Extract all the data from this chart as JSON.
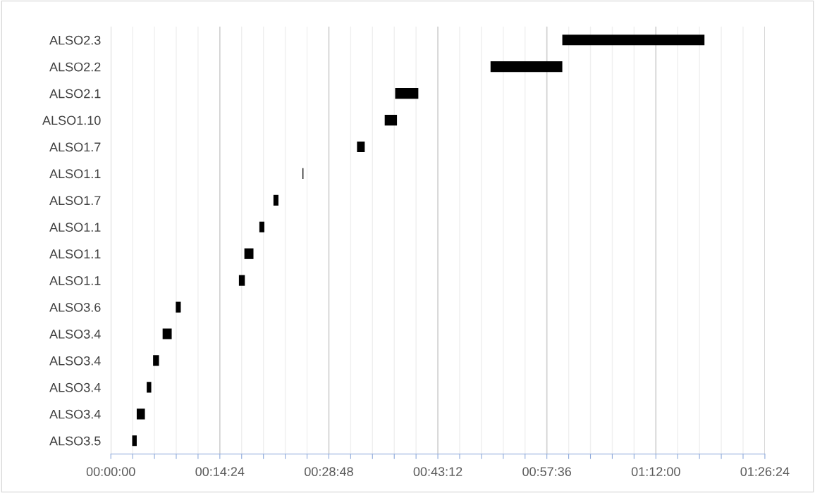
{
  "chart_data": {
    "type": "bar",
    "orientation": "horizontal",
    "categories": [
      "ALSO2.3",
      "ALSO2.2",
      "ALSO2.1",
      "ALSO1.10",
      "ALSO1.7",
      "ALSO1.1",
      "ALSO1.7",
      "ALSO1.1",
      "ALSO1.1",
      "ALSO1.1",
      "ALSO3.6",
      "ALSO3.4",
      "ALSO3.4",
      "ALSO3.4",
      "ALSO3.4",
      "ALSO3.5"
    ],
    "base": [
      0.994,
      0.836,
      0.626,
      0.603,
      0.542,
      0.422,
      0.358,
      0.327,
      0.294,
      0.282,
      0.143,
      0.114,
      0.093,
      0.079,
      0.057,
      0.047
    ],
    "values": [
      0.313,
      0.158,
      0.051,
      0.027,
      0.017,
      0.002,
      0.011,
      0.011,
      0.02,
      0.013,
      0.011,
      0.02,
      0.013,
      0.01,
      0.018,
      0.01
    ],
    "color": "#000000",
    "xlim": [
      0,
      1.44
    ],
    "xticks": [
      {
        "value": 0,
        "label": "00:00:00"
      },
      {
        "value": 0.048,
        "label": null
      },
      {
        "value": 0.096,
        "label": null
      },
      {
        "value": 0.144,
        "label": null
      },
      {
        "value": 0.192,
        "label": null
      },
      {
        "value": 0.24,
        "label": "00:14:24"
      },
      {
        "value": 0.288,
        "label": null
      },
      {
        "value": 0.336,
        "label": null
      },
      {
        "value": 0.384,
        "label": null
      },
      {
        "value": 0.432,
        "label": null
      },
      {
        "value": 0.48,
        "label": "00:28:48"
      },
      {
        "value": 0.528,
        "label": null
      },
      {
        "value": 0.576,
        "label": null
      },
      {
        "value": 0.624,
        "label": null
      },
      {
        "value": 0.672,
        "label": null
      },
      {
        "value": 0.72,
        "label": "00:43:12"
      },
      {
        "value": 0.768,
        "label": null
      },
      {
        "value": 0.816,
        "label": null
      },
      {
        "value": 0.864,
        "label": null
      },
      {
        "value": 0.912,
        "label": null
      },
      {
        "value": 0.96,
        "label": "00:57:36"
      },
      {
        "value": 1.008,
        "label": null
      },
      {
        "value": 1.056,
        "label": null
      },
      {
        "value": 1.104,
        "label": null
      },
      {
        "value": 1.152,
        "label": null
      },
      {
        "value": 1.2,
        "label": "01:12:00"
      },
      {
        "value": 1.248,
        "label": null
      },
      {
        "value": 1.296,
        "label": null
      },
      {
        "value": 1.344,
        "label": null
      },
      {
        "value": 1.392,
        "label": null
      },
      {
        "value": 1.44,
        "label": "01:26:24"
      }
    ],
    "grid": "x"
  }
}
